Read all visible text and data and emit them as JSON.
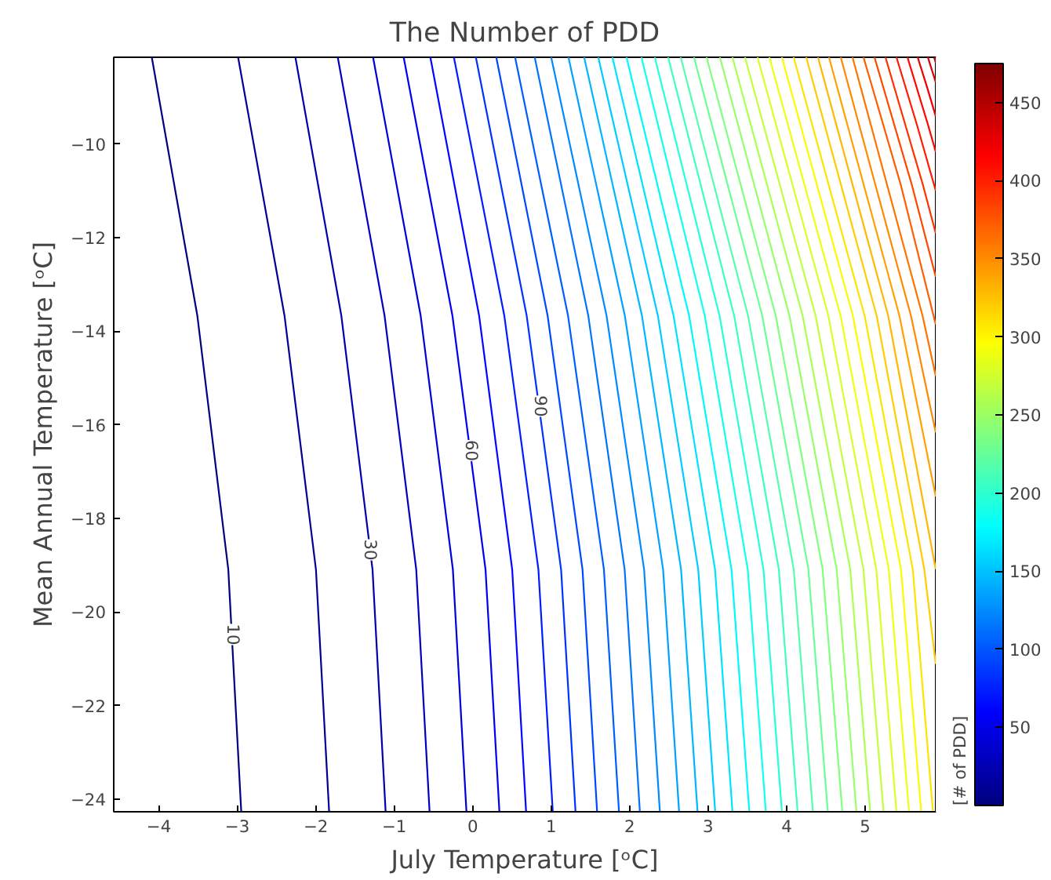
{
  "chart_data": {
    "type": "line",
    "title": "The Number of PDD",
    "xlabel": "July Temperature [ᵒC]",
    "ylabel": "Mean Annual Temperature [ᵒC]",
    "clabel": "[# of PDD]",
    "xlim": [
      -4.575,
      5.9
    ],
    "ylim": [
      -24.27,
      -8.14
    ],
    "xticks": [
      -4,
      -3,
      -2,
      -1,
      0,
      1,
      2,
      3,
      4,
      5
    ],
    "yticks": [
      -24,
      -22,
      -20,
      -18,
      -16,
      -14,
      -12,
      -10
    ],
    "clim": [
      0,
      475
    ],
    "cticks": [
      50,
      100,
      150,
      200,
      250,
      300,
      350,
      400,
      450
    ],
    "grid": false,
    "series": [
      {
        "color": "#000080",
        "x": [
          -2.95,
          -3.115,
          -3.509,
          -4.09
        ],
        "values": [
          -24.27,
          -19.09,
          -13.67,
          -8.14
        ]
      },
      {
        "color": "#000096",
        "x": [
          -1.83,
          -1.998,
          -2.398,
          -2.99
        ],
        "values": [
          -24.27,
          -19.09,
          -13.67,
          -8.14
        ]
      },
      {
        "color": "#0000ac",
        "x": [
          -1.11,
          -1.277,
          -1.674,
          -2.26
        ],
        "values": [
          -24.27,
          -19.09,
          -13.67,
          -8.14
        ]
      },
      {
        "color": "#0000c2",
        "x": [
          -0.55,
          -0.72,
          -1.123,
          -1.72
        ],
        "values": [
          -24.27,
          -19.09,
          -13.67,
          -8.14
        ]
      },
      {
        "color": "#0000d8",
        "x": [
          -0.08,
          -0.253,
          -0.663,
          -1.27
        ],
        "values": [
          -24.27,
          -19.09,
          -13.67,
          -8.14
        ]
      },
      {
        "color": "#0000ee",
        "x": [
          0.34,
          0.163,
          -0.258,
          -0.88
        ],
        "values": [
          -24.27,
          -19.09,
          -13.67,
          -8.14
        ]
      },
      {
        "color": "#0006ff",
        "x": [
          0.68,
          0.503,
          0.082,
          -0.54
        ],
        "values": [
          -24.27,
          -19.09,
          -13.67,
          -8.14
        ]
      },
      {
        "color": "#001cff",
        "x": [
          1.02,
          0.837,
          0.403,
          -0.24
        ],
        "values": [
          -24.27,
          -19.09,
          -13.67,
          -8.14
        ]
      },
      {
        "color": "#0032ff",
        "x": [
          1.31,
          1.126,
          0.688,
          0.04
        ],
        "values": [
          -24.27,
          -19.09,
          -13.67,
          -8.14
        ]
      },
      {
        "color": "#0048ff",
        "x": [
          1.585,
          1.399,
          0.955,
          0.3
        ],
        "values": [
          -24.27,
          -19.09,
          -13.67,
          -8.14
        ]
      },
      {
        "color": "#005eff",
        "x": [
          1.864,
          1.672,
          1.215,
          0.54
        ],
        "values": [
          -24.27,
          -19.09,
          -13.67,
          -8.14
        ]
      },
      {
        "color": "#0074ff",
        "x": [
          2.13,
          1.936,
          1.473,
          0.79
        ],
        "values": [
          -24.27,
          -19.09,
          -13.67,
          -8.14
        ]
      },
      {
        "color": "#008aff",
        "x": [
          2.385,
          2.184,
          1.706,
          1.0
        ],
        "values": [
          -24.27,
          -19.09,
          -13.67,
          -8.14
        ]
      },
      {
        "color": "#00a1ff",
        "x": [
          2.63,
          2.426,
          1.939,
          1.22
        ],
        "values": [
          -24.27,
          -19.09,
          -13.67,
          -8.14
        ]
      },
      {
        "color": "#00b7ff",
        "x": [
          2.865,
          2.655,
          2.157,
          1.42
        ],
        "values": [
          -24.27,
          -19.09,
          -13.67,
          -8.14
        ]
      },
      {
        "color": "#00cdff",
        "x": [
          3.09,
          2.874,
          2.36,
          1.6
        ],
        "values": [
          -24.27,
          -19.09,
          -13.67,
          -8.14
        ]
      },
      {
        "color": "#00e3ff",
        "x": [
          3.31,
          3.088,
          2.56,
          1.78
        ],
        "values": [
          -24.27,
          -19.09,
          -13.67,
          -8.14
        ]
      },
      {
        "color": "#00f9ff",
        "x": [
          3.525,
          3.298,
          2.758,
          1.96
        ],
        "values": [
          -24.27,
          -19.09,
          -13.67,
          -8.14
        ]
      },
      {
        "color": "#11ffee",
        "x": [
          3.735,
          3.505,
          2.958,
          2.15
        ],
        "values": [
          -24.27,
          -19.09,
          -13.67,
          -8.14
        ]
      },
      {
        "color": "#27ffd8",
        "x": [
          3.94,
          3.705,
          3.146,
          2.32
        ],
        "values": [
          -24.27,
          -19.09,
          -13.67,
          -8.14
        ]
      },
      {
        "color": "#3dffc2",
        "x": [
          4.14,
          3.901,
          3.332,
          2.49
        ],
        "values": [
          -24.27,
          -19.09,
          -13.67,
          -8.14
        ]
      },
      {
        "color": "#53ffac",
        "x": [
          4.335,
          4.091,
          3.509,
          2.65
        ],
        "values": [
          -24.27,
          -19.09,
          -13.67,
          -8.14
        ]
      },
      {
        "color": "#69ff96",
        "x": [
          4.525,
          4.278,
          3.69,
          2.82
        ],
        "values": [
          -24.27,
          -19.09,
          -13.67,
          -8.14
        ]
      },
      {
        "color": "#80ff80",
        "x": [
          4.71,
          4.459,
          3.862,
          2.98
        ],
        "values": [
          -24.27,
          -19.09,
          -13.67,
          -8.14
        ]
      },
      {
        "color": "#96ff69",
        "x": [
          4.89,
          4.638,
          4.037,
          3.15
        ],
        "values": [
          -24.27,
          -19.09,
          -13.67,
          -8.14
        ]
      },
      {
        "color": "#acff53",
        "x": [
          5.065,
          4.811,
          4.205,
          3.31
        ],
        "values": [
          -24.27,
          -19.09,
          -13.67,
          -8.14
        ]
      },
      {
        "color": "#c2ff3d",
        "x": [
          5.235,
          4.979,
          4.37,
          3.47
        ],
        "values": [
          -24.27,
          -19.09,
          -13.67,
          -8.14
        ]
      },
      {
        "color": "#d8ff27",
        "x": [
          5.4,
          5.143,
          4.533,
          3.63
        ],
        "values": [
          -24.27,
          -19.09,
          -13.67,
          -8.14
        ]
      },
      {
        "color": "#eeff11",
        "x": [
          5.56,
          5.302,
          4.688,
          3.78
        ],
        "values": [
          -24.27,
          -19.09,
          -13.67,
          -8.14
        ]
      },
      {
        "color": "#fff900",
        "x": [
          5.715,
          5.458,
          4.845,
          3.94
        ],
        "values": [
          -24.27,
          -19.09,
          -13.67,
          -8.14
        ]
      },
      {
        "color": "#ffe300",
        "x": [
          5.865,
          5.608,
          4.995,
          4.09
        ],
        "values": [
          -24.27,
          -19.09,
          -13.67,
          -8.14
        ]
      },
      {
        "color": "#ffcd00",
        "x": [
          5.9,
          5.755,
          5.148,
          4.25
        ],
        "values": [
          -21.11,
          -19.09,
          -13.67,
          -8.14
        ]
      },
      {
        "color": "#ffb700",
        "x": [
          5.9,
          5.295,
          4.4
        ],
        "values": [
          -19.08,
          -13.67,
          -8.14
        ]
      },
      {
        "color": "#ffa100",
        "x": [
          5.9,
          5.438,
          4.54
        ],
        "values": [
          -17.53,
          -13.67,
          -8.14
        ]
      },
      {
        "color": "#ff8a00",
        "x": [
          5.9,
          5.585,
          4.69
        ],
        "values": [
          -16.16,
          -13.67,
          -8.14
        ]
      },
      {
        "color": "#ff7400",
        "x": [
          5.9,
          5.733,
          4.84
        ],
        "values": [
          -14.95,
          -13.67,
          -8.14
        ]
      },
      {
        "color": "#ff5e00",
        "x": [
          5.9,
          5.457,
          4.98
        ],
        "values": [
          -13.85,
          -10.88,
          -8.14
        ]
      },
      {
        "color": "#ff4800",
        "x": [
          5.9,
          5.598,
          5.12
        ],
        "values": [
          -12.83,
          -10.88,
          -8.14
        ]
      },
      {
        "color": "#ff3200",
        "x": [
          5.9,
          5.739,
          5.26
        ],
        "values": [
          -11.9,
          -10.88,
          -8.14
        ]
      },
      {
        "color": "#ff1c00",
        "x": [
          5.9,
          5.662,
          5.4
        ],
        "values": [
          -10.99,
          -9.59,
          -8.14
        ]
      },
      {
        "color": "#ff0600",
        "x": [
          5.9,
          5.803,
          5.54
        ],
        "values": [
          -10.16,
          -9.59,
          -8.14
        ]
      },
      {
        "color": "#ee0000",
        "x": [
          5.9,
          5.79,
          5.67
        ],
        "values": [
          -9.4,
          -8.78,
          -8.14
        ]
      },
      {
        "color": "#d80000",
        "x": [
          5.9,
          5.8
        ],
        "values": [
          -8.67,
          -8.14
        ]
      },
      {
        "color": "#c20000",
        "x": [
          5.9,
          5.88
        ],
        "values": [
          -8.25,
          -8.14
        ]
      }
    ],
    "annotations": [
      {
        "text": "10",
        "x": -3.05,
        "y": -20.48
      },
      {
        "text": "30",
        "x": -1.3,
        "y": -18.67
      },
      {
        "text": "60",
        "x": -0.01,
        "y": -16.55
      },
      {
        "text": "90",
        "x": 0.87,
        "y": -15.6
      }
    ]
  }
}
